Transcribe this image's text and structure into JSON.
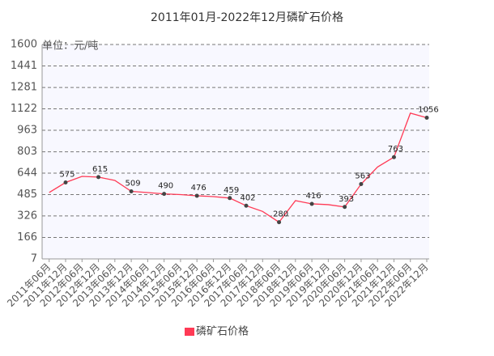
{
  "chart_data": {
    "type": "line",
    "title": "2011年01月-2022年12月磷矿石价格",
    "y_axis_label": "单位：元/吨",
    "categories": [
      "2011年06月",
      "2011年12月",
      "2012年06月",
      "2012年12月",
      "2013年06月",
      "2013年12月",
      "2014年06月",
      "2014年12月",
      "2015年06月",
      "2015年12月",
      "2016年06月",
      "2016年12月",
      "2017年06月",
      "2017年12月",
      "2018年06月",
      "2018年12月",
      "2019年06月",
      "2019年12月",
      "2020年06月",
      "2020年12月",
      "2021年06月",
      "2021年12月",
      "2022年06月",
      "2022年12月"
    ],
    "series": [
      {
        "name": "磷矿石价格",
        "color": "#ff3a55",
        "values": [
          500,
          575,
          620,
          615,
          590,
          509,
          500,
          490,
          485,
          476,
          470,
          459,
          402,
          360,
          280,
          440,
          416,
          410,
          393,
          563,
          690,
          763,
          1090,
          1056
        ]
      }
    ],
    "marked_points": [
      1,
      3,
      5,
      7,
      9,
      11,
      12,
      14,
      16,
      18,
      19,
      21,
      23
    ],
    "ylim": [
      7,
      1600
    ],
    "yticks": [
      7,
      166,
      326,
      485,
      644,
      803,
      963,
      1122,
      1281,
      1441,
      1600
    ],
    "grid": true,
    "legend": "bottom"
  }
}
